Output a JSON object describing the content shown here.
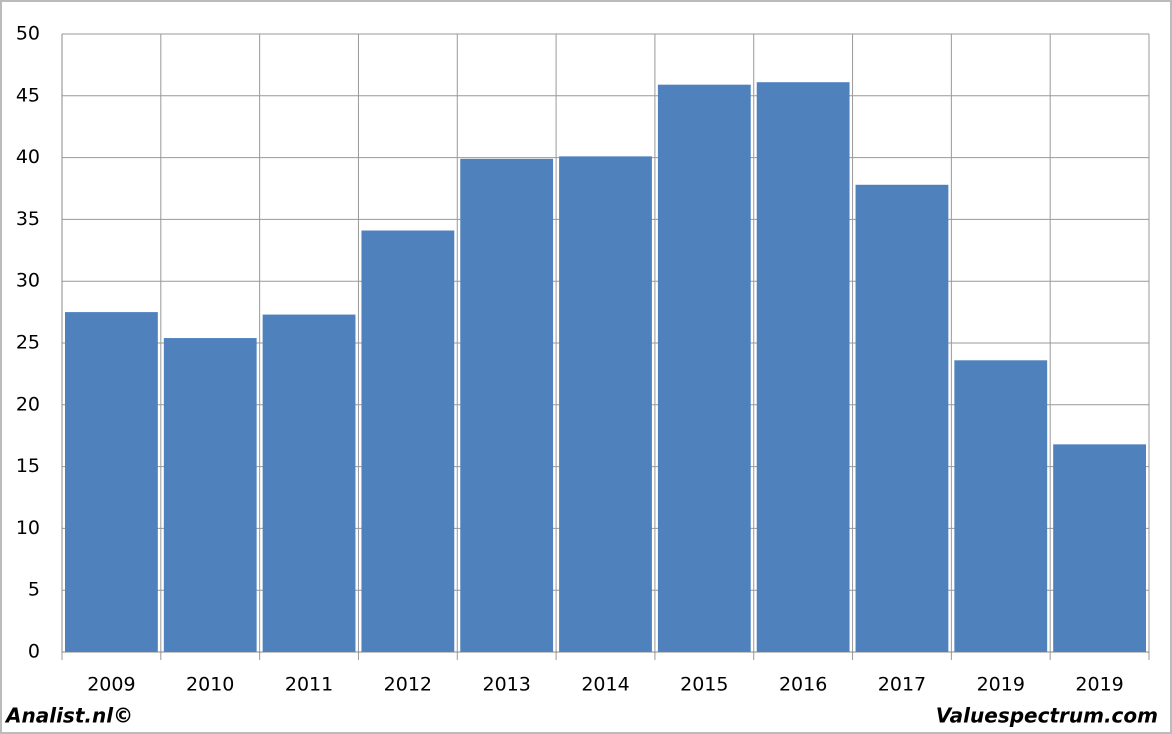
{
  "chart_data": {
    "type": "bar",
    "categories": [
      "2009",
      "2010",
      "2011",
      "2012",
      "2013",
      "2014",
      "2015",
      "2016",
      "2017",
      "2019",
      "2019"
    ],
    "values": [
      27.5,
      25.4,
      27.3,
      34.1,
      39.9,
      40.1,
      45.9,
      46.1,
      37.8,
      23.6,
      16.8
    ],
    "color": "#4f81bd",
    "ylim": [
      0,
      50
    ],
    "yticks": [
      0,
      5,
      10,
      15,
      20,
      25,
      30,
      35,
      40,
      45,
      50
    ],
    "grid": true,
    "credits": {
      "left": "Analist.nl©",
      "right": "Valuespectrum.com"
    }
  }
}
